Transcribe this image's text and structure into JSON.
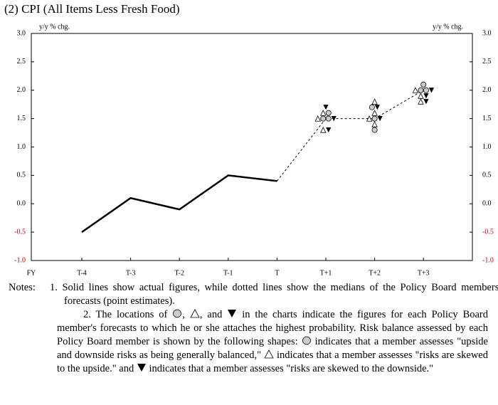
{
  "chart_data": {
    "type": "line",
    "title": "(2) CPI (All Items Less Fresh Food)",
    "y_axis_label": "y/y % chg.",
    "y2_axis_label": "y/y % chg.",
    "x_axis_label": "FY",
    "categories": [
      "T-4",
      "T-3",
      "T-2",
      "T-1",
      "T",
      "T+1",
      "T+2",
      "T+3"
    ],
    "series": [
      {
        "name": "Actual",
        "style": "solid",
        "color": "#000000",
        "values": [
          -0.5,
          0.1,
          -0.1,
          0.5,
          0.4,
          null,
          null,
          null
        ]
      },
      {
        "name": "Median",
        "style": "dotted",
        "color": "#000000",
        "values": [
          null,
          null,
          null,
          null,
          0.4,
          1.5,
          1.5,
          2.0
        ]
      }
    ],
    "forecasts": [
      {
        "category": "T+1",
        "value": 1.7,
        "shape": "down"
      },
      {
        "category": "T+1",
        "value": 1.6,
        "shape": "up"
      },
      {
        "category": "T+1",
        "value": 1.6,
        "shape": "circle"
      },
      {
        "category": "T+1",
        "value": 1.5,
        "shape": "up"
      },
      {
        "category": "T+1",
        "value": 1.5,
        "shape": "circle"
      },
      {
        "category": "T+1",
        "value": 1.5,
        "shape": "circle"
      },
      {
        "category": "T+1",
        "value": 1.5,
        "shape": "down"
      },
      {
        "category": "T+1",
        "value": 1.3,
        "shape": "up"
      },
      {
        "category": "T+1",
        "value": 1.3,
        "shape": "down"
      },
      {
        "category": "T+2",
        "value": 1.8,
        "shape": "up"
      },
      {
        "category": "T+2",
        "value": 1.7,
        "shape": "circle"
      },
      {
        "category": "T+2",
        "value": 1.7,
        "shape": "down"
      },
      {
        "category": "T+2",
        "value": 1.6,
        "shape": "up"
      },
      {
        "category": "T+2",
        "value": 1.5,
        "shape": "up"
      },
      {
        "category": "T+2",
        "value": 1.5,
        "shape": "circle"
      },
      {
        "category": "T+2",
        "value": 1.5,
        "shape": "down"
      },
      {
        "category": "T+2",
        "value": 1.4,
        "shape": "up"
      },
      {
        "category": "T+2",
        "value": 1.3,
        "shape": "circle"
      },
      {
        "category": "T+3",
        "value": 2.1,
        "shape": "circle"
      },
      {
        "category": "T+3",
        "value": 2.0,
        "shape": "up"
      },
      {
        "category": "T+3",
        "value": 2.0,
        "shape": "circle"
      },
      {
        "category": "T+3",
        "value": 2.0,
        "shape": "circle"
      },
      {
        "category": "T+3",
        "value": 2.0,
        "shape": "down"
      },
      {
        "category": "T+3",
        "value": 1.9,
        "shape": "up"
      },
      {
        "category": "T+3",
        "value": 1.9,
        "shape": "down"
      },
      {
        "category": "T+3",
        "value": 1.8,
        "shape": "up"
      },
      {
        "category": "T+3",
        "value": 1.8,
        "shape": "down"
      }
    ],
    "ylim": [
      -1.0,
      3.0
    ],
    "yticks": [
      {
        "value": -1.0,
        "label": "-1.0"
      },
      -0.5,
      {
        "value": 0.0,
        "label": "0.0"
      },
      0.5,
      {
        "value": 1.0,
        "label": "1.0"
      },
      1.5,
      {
        "value": 2.0,
        "label": "2.0"
      },
      2.5,
      {
        "value": 3.0,
        "label": "3.0"
      }
    ],
    "y2lim": [
      -1.0,
      3.0
    ],
    "y2ticks": [
      {
        "value": -1.0,
        "label": "-1.0"
      },
      -0.5,
      {
        "value": 0.0,
        "label": "0.0"
      },
      0.5,
      {
        "value": 1.0,
        "label": "1.0"
      },
      1.5,
      {
        "value": 2.0,
        "label": "2.0"
      },
      2.5,
      {
        "value": 3.0,
        "label": "3.0"
      }
    ],
    "negative_tick_color": "#cc0000",
    "grid": false
  },
  "notes": {
    "label": "Notes:",
    "items": [
      {
        "segments": [
          "1. Solid lines show actual figures, while dotted lines show the medians of the Policy Board members' forecasts (point estimates)."
        ]
      },
      {
        "segments": [
          "2. The locations of ",
          ", ",
          ", and ",
          " in the charts indicate the figures for each Policy Board member's forecasts to which he or she attaches the highest probability.  Risk balance assessed by each Policy Board member is shown by the following shapes: ",
          " indicates that a member assesses \"upside and downside risks as being generally balanced,\" ",
          " indicates that a member assesses \"risks are skewed to the upside.\" and ",
          " indicates that a member assesses \"risks are skewed to the downside.\""
        ]
      }
    ]
  }
}
